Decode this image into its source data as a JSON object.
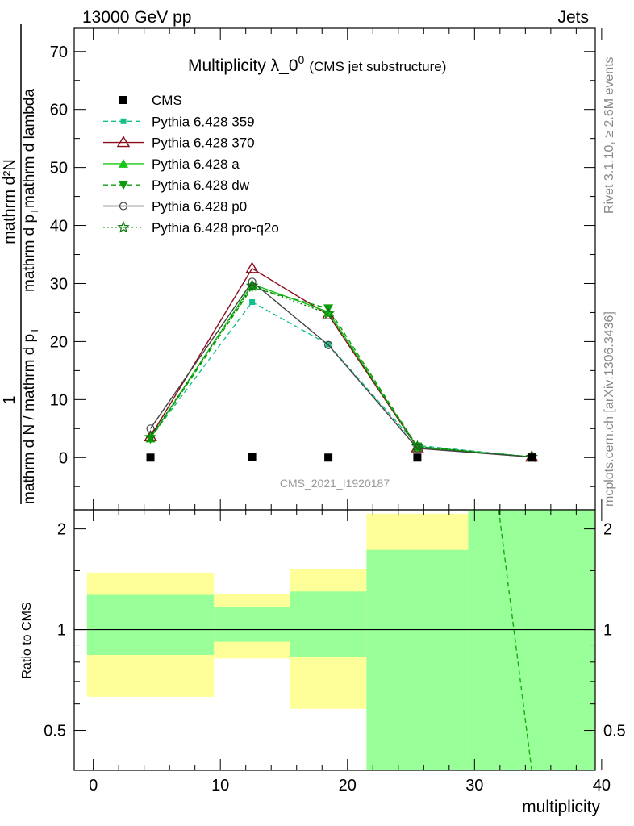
{
  "header": {
    "left": "13000 GeV pp",
    "right": "Jets"
  },
  "side": {
    "rivet": "Rivet 3.1.10, ≥ 2.6M events",
    "mcplots": "mcplots.cern.ch [arXiv:1306.3436]"
  },
  "colors": {
    "cms": "#000000",
    "p359": "#13c08a",
    "p370": "#8b0a1a",
    "pa": "#16c616",
    "pdw": "#0b9c0b",
    "pp0": "#444444",
    "pq2o": "#0a7a0a",
    "band_inner": "#99ff99",
    "band_outer": "#ffff99"
  },
  "chart_data": [
    {
      "type": "line",
      "title": "Multiplicity λ_0",
      "title_sup": "0",
      "title_suffix": "(CMS jet substructure)",
      "ylabel_top": "mathrm d²N",
      "ylabel_bottom": "mathrm d p",
      "ylabel_top_sub": "T",
      "ylabel_bottom_suffix": "mathrm d lambda",
      "ylabel_frac": "1",
      "ylabel_denom": "mathrm d N / mathrm d p",
      "ylabel_denom_sub": "T",
      "watermark": "CMS_2021_I1920187",
      "xlim": [
        -1.5,
        39.5
      ],
      "ylim": [
        -9,
        74
      ],
      "yticks": [
        0,
        10,
        20,
        30,
        40,
        50,
        60,
        70
      ],
      "x": [
        4.5,
        12.5,
        18.5,
        25.5,
        34.5
      ],
      "series": [
        {
          "name": "CMS",
          "key": "cms",
          "values": [
            0.0,
            0.1,
            0.0,
            0.0,
            0.0
          ]
        },
        {
          "name": "Pythia 6.428 359",
          "key": "p359",
          "values": [
            3.4,
            26.8,
            19.5,
            2.1,
            0.1
          ]
        },
        {
          "name": "Pythia 6.428 370",
          "key": "p370",
          "values": [
            3.6,
            32.6,
            24.6,
            1.7,
            0.1
          ]
        },
        {
          "name": "Pythia 6.428 a",
          "key": "pa",
          "values": [
            3.3,
            29.9,
            25.1,
            1.8,
            0.1
          ]
        },
        {
          "name": "Pythia 6.428 dw",
          "key": "pdw",
          "values": [
            3.2,
            29.3,
            25.7,
            1.9,
            0.1
          ]
        },
        {
          "name": "Pythia 6.428 p0",
          "key": "pp0",
          "values": [
            5.0,
            30.3,
            19.4,
            1.6,
            0.1
          ]
        },
        {
          "name": "Pythia 6.428 pro-q2o",
          "key": "pq2o",
          "values": [
            3.5,
            29.6,
            24.8,
            1.9,
            0.1
          ]
        }
      ]
    },
    {
      "type": "area",
      "ylabel": "Ratio to CMS",
      "xlabel": "multiplicity",
      "xlim": [
        -1.5,
        39.5
      ],
      "ylim": [
        0.38,
        2.28
      ],
      "yticks": [
        0.5,
        1,
        2
      ],
      "ytick_labels": [
        "0.5",
        "1",
        "2"
      ],
      "xticks": [
        0,
        10,
        20,
        30,
        40
      ],
      "bins": [
        {
          "x0": -0.5,
          "x1": 9.5,
          "inner": [
            0.84,
            1.27
          ],
          "outer": [
            0.63,
            1.48
          ]
        },
        {
          "x0": 9.5,
          "x1": 15.5,
          "inner": [
            0.92,
            1.17
          ],
          "outer": [
            0.82,
            1.28
          ]
        },
        {
          "x0": 15.5,
          "x1": 21.5,
          "inner": [
            0.83,
            1.3
          ],
          "outer": [
            0.58,
            1.52
          ]
        },
        {
          "x0": 21.5,
          "x1": 29.5,
          "inner": [
            0.38,
            1.73
          ],
          "outer": [
            0.38,
            2.22
          ]
        },
        {
          "x0": 29.5,
          "x1": 39.5,
          "inner": [
            0.38,
            2.28
          ],
          "outer": [
            0.38,
            2.28
          ]
        }
      ],
      "ratio_line": {
        "x": [
          31.9,
          34.5
        ],
        "values": [
          2.28,
          0.38
        ]
      }
    }
  ]
}
